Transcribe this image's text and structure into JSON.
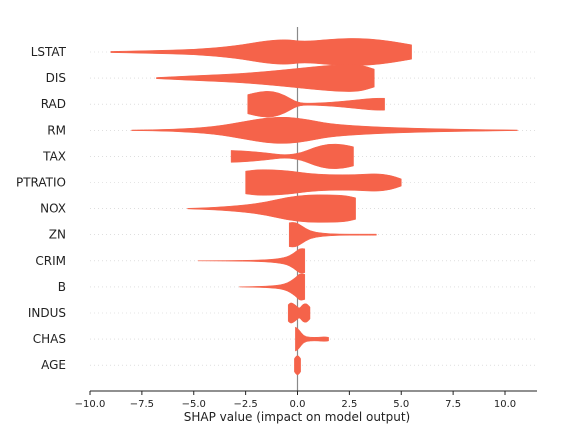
{
  "chart_data": {
    "type": "violin",
    "xlabel": "SHAP value (impact on model output)",
    "ylabel": "",
    "xlim": [
      -10.0,
      10.0
    ],
    "xticks": [
      "-10.0",
      "-7.5",
      "-5.0",
      "-2.5",
      "0.0",
      "2.5",
      "5.0",
      "7.5",
      "10.0"
    ],
    "zero_line": 0.0,
    "grid": "horizontal dotted",
    "color": "#f5634a",
    "features": [
      {
        "name": "LSTAT",
        "range": [
          -9.0,
          5.5
        ],
        "profile": [
          [
            -9.0,
            0.02
          ],
          [
            -7.0,
            0.05
          ],
          [
            -5.0,
            0.08
          ],
          [
            -3.0,
            0.2
          ],
          [
            -1.5,
            0.38
          ],
          [
            -0.5,
            0.42
          ],
          [
            0.3,
            0.35
          ],
          [
            1.5,
            0.42
          ],
          [
            2.5,
            0.46
          ],
          [
            3.5,
            0.44
          ],
          [
            4.5,
            0.36
          ],
          [
            5.5,
            0.24
          ]
        ]
      },
      {
        "name": "DIS",
        "range": [
          -6.8,
          3.7
        ],
        "profile": [
          [
            -6.8,
            0.02
          ],
          [
            -5.0,
            0.08
          ],
          [
            -3.0,
            0.14
          ],
          [
            -1.5,
            0.22
          ],
          [
            -0.3,
            0.3
          ],
          [
            0.8,
            0.38
          ],
          [
            2.0,
            0.45
          ],
          [
            3.0,
            0.45
          ],
          [
            3.7,
            0.3
          ]
        ]
      },
      {
        "name": "RAD",
        "range": [
          -2.4,
          4.2
        ],
        "profile": [
          [
            -2.4,
            0.32
          ],
          [
            -1.8,
            0.42
          ],
          [
            -1.2,
            0.44
          ],
          [
            -0.6,
            0.3
          ],
          [
            0.0,
            0.05
          ],
          [
            0.6,
            0.03
          ],
          [
            1.6,
            0.06
          ],
          [
            2.8,
            0.14
          ],
          [
            3.6,
            0.2
          ],
          [
            4.2,
            0.2
          ]
        ]
      },
      {
        "name": "RM",
        "range": [
          -8.0,
          10.6
        ],
        "profile": [
          [
            -8.0,
            0.01
          ],
          [
            -6.0,
            0.03
          ],
          [
            -4.0,
            0.12
          ],
          [
            -2.5,
            0.3
          ],
          [
            -1.5,
            0.42
          ],
          [
            -0.5,
            0.45
          ],
          [
            0.5,
            0.36
          ],
          [
            1.5,
            0.22
          ],
          [
            3.0,
            0.14
          ],
          [
            5.0,
            0.08
          ],
          [
            7.5,
            0.04
          ],
          [
            10.6,
            0.01
          ]
        ]
      },
      {
        "name": "TAX",
        "range": [
          -3.2,
          2.7
        ],
        "profile": [
          [
            -3.2,
            0.2
          ],
          [
            -2.5,
            0.18
          ],
          [
            -1.5,
            0.12
          ],
          [
            -0.6,
            0.04
          ],
          [
            0.2,
            0.12
          ],
          [
            0.8,
            0.3
          ],
          [
            1.5,
            0.42
          ],
          [
            2.2,
            0.4
          ],
          [
            2.7,
            0.32
          ]
        ]
      },
      {
        "name": "PTRATIO",
        "range": [
          -2.5,
          5.0
        ],
        "profile": [
          [
            -2.5,
            0.38
          ],
          [
            -1.8,
            0.44
          ],
          [
            -0.5,
            0.4
          ],
          [
            0.5,
            0.3
          ],
          [
            1.5,
            0.26
          ],
          [
            2.8,
            0.26
          ],
          [
            3.8,
            0.3
          ],
          [
            4.5,
            0.24
          ],
          [
            5.0,
            0.12
          ]
        ]
      },
      {
        "name": "NOX",
        "range": [
          -5.3,
          2.8
        ],
        "profile": [
          [
            -5.3,
            0.01
          ],
          [
            -4.0,
            0.04
          ],
          [
            -2.5,
            0.12
          ],
          [
            -1.5,
            0.22
          ],
          [
            -0.5,
            0.38
          ],
          [
            0.5,
            0.46
          ],
          [
            1.5,
            0.46
          ],
          [
            2.3,
            0.44
          ],
          [
            2.8,
            0.36
          ]
        ]
      },
      {
        "name": "ZN",
        "range": [
          -0.4,
          3.8
        ],
        "profile": [
          [
            -0.4,
            0.4
          ],
          [
            -0.1,
            0.42
          ],
          [
            0.2,
            0.3
          ],
          [
            0.6,
            0.12
          ],
          [
            1.2,
            0.05
          ],
          [
            2.0,
            0.02
          ],
          [
            3.0,
            0.02
          ],
          [
            3.8,
            0.02
          ]
        ]
      },
      {
        "name": "CRIM",
        "range": [
          -4.8,
          0.35
        ],
        "profile": [
          [
            -4.8,
            0.005
          ],
          [
            -3.0,
            0.01
          ],
          [
            -1.5,
            0.03
          ],
          [
            -0.6,
            0.1
          ],
          [
            -0.2,
            0.24
          ],
          [
            0.1,
            0.42
          ],
          [
            0.35,
            0.4
          ]
        ]
      },
      {
        "name": "B",
        "range": [
          -2.8,
          0.35
        ],
        "profile": [
          [
            -2.8,
            0.005
          ],
          [
            -1.5,
            0.02
          ],
          [
            -0.6,
            0.08
          ],
          [
            -0.1,
            0.3
          ],
          [
            0.1,
            0.46
          ],
          [
            0.35,
            0.42
          ]
        ]
      },
      {
        "name": "INDUS",
        "range": [
          -0.45,
          0.6
        ],
        "profile": [
          [
            -0.45,
            0.28
          ],
          [
            -0.3,
            0.36
          ],
          [
            -0.05,
            0.24
          ],
          [
            0.1,
            0.14
          ],
          [
            0.25,
            0.3
          ],
          [
            0.45,
            0.32
          ],
          [
            0.6,
            0.2
          ]
        ]
      },
      {
        "name": "CHAS",
        "range": [
          -0.1,
          1.5
        ],
        "profile": [
          [
            -0.1,
            0.4
          ],
          [
            0.05,
            0.34
          ],
          [
            0.3,
            0.1
          ],
          [
            0.6,
            0.06
          ],
          [
            1.0,
            0.06
          ],
          [
            1.3,
            0.08
          ],
          [
            1.5,
            0.06
          ]
        ]
      },
      {
        "name": "AGE",
        "range": [
          -0.15,
          0.15
        ],
        "profile": [
          [
            -0.15,
            0.22
          ],
          [
            -0.05,
            0.32
          ],
          [
            0.05,
            0.32
          ],
          [
            0.15,
            0.22
          ]
        ]
      }
    ]
  }
}
